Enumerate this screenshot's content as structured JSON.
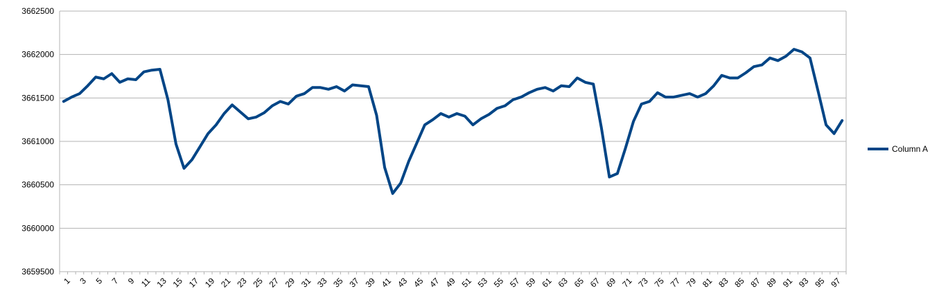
{
  "chart_data": {
    "type": "line",
    "title": "",
    "xlabel": "",
    "ylabel": "",
    "x": [
      1,
      2,
      3,
      4,
      5,
      6,
      7,
      8,
      9,
      10,
      11,
      12,
      13,
      14,
      15,
      16,
      17,
      18,
      19,
      20,
      21,
      22,
      23,
      24,
      25,
      26,
      27,
      28,
      29,
      30,
      31,
      32,
      33,
      34,
      35,
      36,
      37,
      38,
      39,
      40,
      41,
      42,
      43,
      44,
      45,
      46,
      47,
      48,
      49,
      50,
      51,
      52,
      53,
      54,
      55,
      56,
      57,
      58,
      59,
      60,
      61,
      62,
      63,
      64,
      65,
      66,
      67,
      68,
      69,
      70,
      71,
      72,
      73,
      74,
      75,
      76,
      77,
      78,
      79,
      80,
      81,
      82,
      83,
      84,
      85,
      86,
      87,
      88,
      89,
      90,
      91,
      92,
      93,
      94,
      95,
      96,
      97,
      98
    ],
    "x_tick_labels": [
      "1",
      "3",
      "5",
      "7",
      "9",
      "11",
      "13",
      "15",
      "17",
      "19",
      "21",
      "23",
      "25",
      "27",
      "29",
      "31",
      "33",
      "35",
      "37",
      "39",
      "41",
      "43",
      "45",
      "47",
      "49",
      "51",
      "53",
      "55",
      "57",
      "59",
      "61",
      "63",
      "65",
      "67",
      "69",
      "71",
      "73",
      "75",
      "77",
      "79",
      "81",
      "83",
      "85",
      "87",
      "89",
      "91",
      "93",
      "95",
      "97"
    ],
    "y_tick_labels": [
      "3659500",
      "3660000",
      "3660500",
      "3661000",
      "3661500",
      "3662000",
      "3662500"
    ],
    "ylim": [
      3659500,
      3662500
    ],
    "grid": true,
    "legend_position": "right",
    "series": [
      {
        "name": "Column A",
        "color": "#004586",
        "values": [
          3661460,
          3661510,
          3661550,
          3661640,
          3661740,
          3661720,
          3661780,
          3661680,
          3661720,
          3661710,
          3661800,
          3661820,
          3661830,
          3661480,
          3660970,
          3660690,
          3660790,
          3660940,
          3661090,
          3661190,
          3661320,
          3661420,
          3661340,
          3661260,
          3661280,
          3661330,
          3661410,
          3661460,
          3661430,
          3661520,
          3661550,
          3661620,
          3661620,
          3661600,
          3661630,
          3661580,
          3661650,
          3661640,
          3661630,
          3661300,
          3660700,
          3660400,
          3660520,
          3660770,
          3660980,
          3661190,
          3661250,
          3661320,
          3661280,
          3661320,
          3661290,
          3661190,
          3661260,
          3661310,
          3661380,
          3661410,
          3661480,
          3661510,
          3661560,
          3661600,
          3661620,
          3661580,
          3661640,
          3661630,
          3661730,
          3661680,
          3661660,
          3661160,
          3660590,
          3660630,
          3660920,
          3661230,
          3661430,
          3661460,
          3661560,
          3661510,
          3661510,
          3661530,
          3661550,
          3661510,
          3661550,
          3661640,
          3661760,
          3661730,
          3661730,
          3661790,
          3661860,
          3661880,
          3661960,
          3661930,
          3661980,
          3662060,
          3662030,
          3661960,
          3661580,
          3661190,
          3661090,
          3661240
        ]
      }
    ]
  }
}
